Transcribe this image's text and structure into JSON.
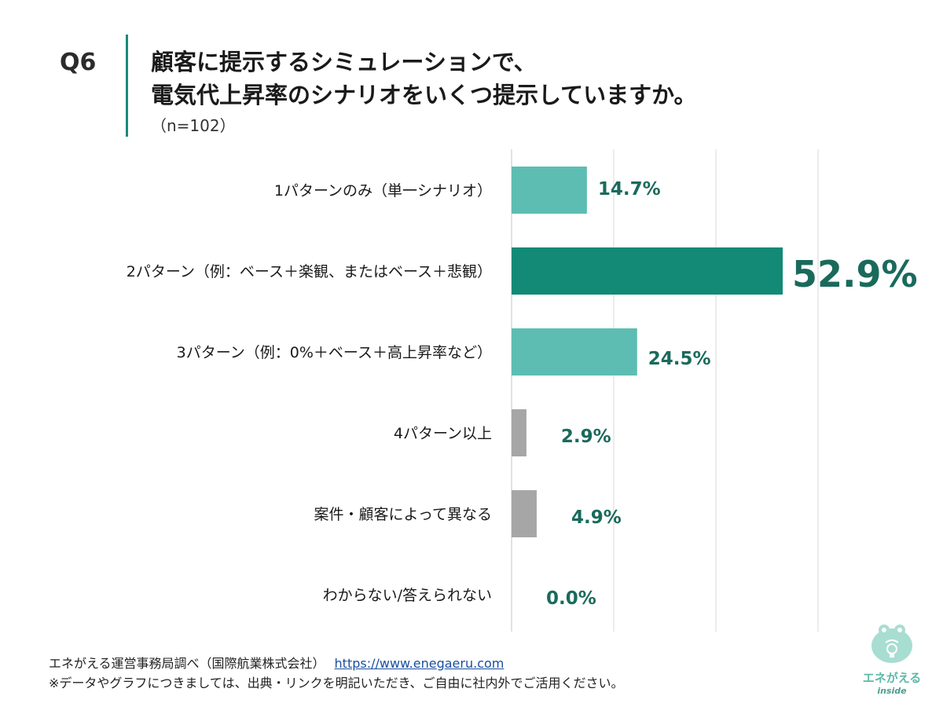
{
  "header": {
    "question": "Q6",
    "title_line1": "顧客に提示するシミュレーションで、",
    "title_line2": "電気代上昇率のシナリオをいくつ提示していますか。",
    "sample": "（n=102）"
  },
  "chart_data": {
    "type": "bar",
    "orientation": "horizontal",
    "categories": [
      "1パターンのみ（単一シナリオ）",
      "2パターン（例：ベース＋楽観、またはベース＋悲観）",
      "3パターン（例：0%＋ベース＋高上昇率など）",
      "4パターン以上",
      "案件・顧客によって異なる",
      "わからない/答えられない"
    ],
    "values": [
      14.7,
      52.9,
      24.5,
      2.9,
      4.9,
      0.0
    ],
    "value_labels": [
      "14.7%",
      "52.9%",
      "24.5%",
      "2.9%",
      "4.9%",
      "0.0%"
    ],
    "xlim": [
      0,
      60
    ],
    "grid": true,
    "colors": {
      "primary": "#5dbdb2",
      "highlight": "#128a76",
      "other": "#a6a6a6",
      "label": "#1a6a5c",
      "grid": "#d9d9d9"
    }
  },
  "footer": {
    "source": "エネがえる運営事務局調べ（国際航業株式会社）",
    "url": "https://www.enegaeru.com",
    "note": "※データやグラフにつきましては、出典・リンクを明記いただき、ご自由に社内外でご活用ください。"
  },
  "logo": {
    "name": "エネがえる",
    "sub": "inside"
  }
}
